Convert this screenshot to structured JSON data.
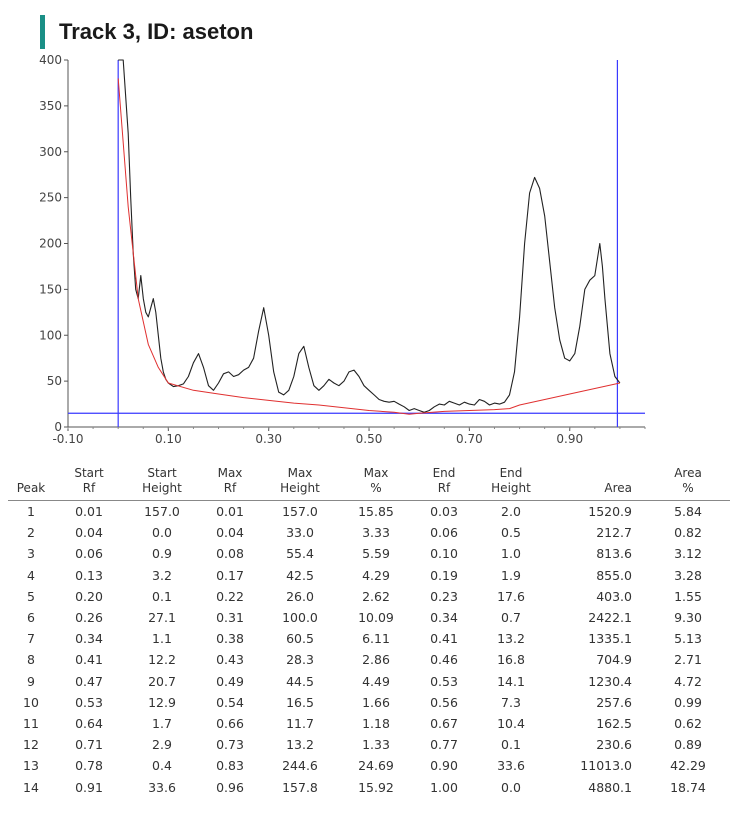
{
  "title": "Track 3, ID: aseton",
  "chart_data": {
    "type": "line",
    "title": "Track 3, ID: aseton",
    "xlim": [
      -0.1,
      1.05
    ],
    "ylim": [
      0,
      400
    ],
    "x_ticks": [
      "-0.10",
      "0.10",
      "0.30",
      "0.50",
      "0.70",
      "0.90"
    ],
    "x_tick_values": [
      -0.1,
      0.1,
      0.3,
      0.5,
      0.7,
      0.9
    ],
    "y_ticks": [
      "0",
      "50",
      "100",
      "150",
      "200",
      "250",
      "300",
      "350",
      "400"
    ],
    "y_tick_values": [
      0,
      50,
      100,
      150,
      200,
      250,
      300,
      350,
      400
    ],
    "start_rf": 0.0,
    "end_rf": 0.995,
    "threshold_y": 15,
    "series": [
      {
        "color": "#222222",
        "x": [
          0.0,
          0.005,
          0.01,
          0.02,
          0.025,
          0.03,
          0.035,
          0.04,
          0.045,
          0.05,
          0.055,
          0.06,
          0.065,
          0.07,
          0.075,
          0.08,
          0.085,
          0.09,
          0.095,
          0.1,
          0.11,
          0.12,
          0.13,
          0.14,
          0.15,
          0.16,
          0.17,
          0.18,
          0.19,
          0.2,
          0.21,
          0.22,
          0.23,
          0.24,
          0.25,
          0.26,
          0.27,
          0.28,
          0.29,
          0.3,
          0.31,
          0.32,
          0.33,
          0.34,
          0.35,
          0.36,
          0.37,
          0.38,
          0.39,
          0.4,
          0.41,
          0.42,
          0.43,
          0.44,
          0.45,
          0.46,
          0.47,
          0.48,
          0.49,
          0.5,
          0.51,
          0.52,
          0.53,
          0.54,
          0.55,
          0.56,
          0.57,
          0.58,
          0.59,
          0.6,
          0.61,
          0.62,
          0.63,
          0.64,
          0.65,
          0.66,
          0.67,
          0.68,
          0.69,
          0.7,
          0.71,
          0.72,
          0.73,
          0.74,
          0.75,
          0.76,
          0.77,
          0.78,
          0.79,
          0.8,
          0.81,
          0.82,
          0.83,
          0.84,
          0.85,
          0.86,
          0.87,
          0.88,
          0.89,
          0.9,
          0.91,
          0.92,
          0.93,
          0.94,
          0.95,
          0.96,
          0.965,
          0.97,
          0.975,
          0.98,
          0.99,
          1.0
        ],
        "y": [
          400,
          400,
          400,
          320,
          250,
          190,
          150,
          140,
          165,
          140,
          125,
          120,
          130,
          140,
          125,
          100,
          75,
          60,
          52,
          48,
          44,
          45,
          47,
          55,
          70,
          80,
          65,
          45,
          40,
          48,
          58,
          60,
          55,
          57,
          62,
          65,
          75,
          105,
          130,
          100,
          60,
          38,
          35,
          40,
          55,
          80,
          88,
          65,
          45,
          40,
          45,
          52,
          48,
          45,
          50,
          60,
          62,
          55,
          45,
          40,
          35,
          30,
          28,
          27,
          28,
          25,
          22,
          18,
          20,
          18,
          16,
          18,
          22,
          25,
          24,
          28,
          26,
          24,
          27,
          25,
          24,
          30,
          28,
          24,
          26,
          25,
          27,
          35,
          60,
          120,
          200,
          255,
          272,
          260,
          230,
          180,
          130,
          95,
          75,
          72,
          80,
          110,
          150,
          160,
          165,
          200,
          175,
          140,
          110,
          80,
          55,
          48
        ]
      },
      {
        "color": "#e03030",
        "x": [
          0.0,
          0.02,
          0.04,
          0.06,
          0.08,
          0.1,
          0.15,
          0.2,
          0.25,
          0.3,
          0.35,
          0.4,
          0.45,
          0.5,
          0.55,
          0.58,
          0.6,
          0.65,
          0.7,
          0.75,
          0.78,
          0.8,
          0.85,
          0.9,
          0.95,
          1.0
        ],
        "y": [
          380,
          240,
          140,
          90,
          65,
          48,
          40,
          36,
          32,
          29,
          26,
          24,
          21,
          18,
          16,
          14,
          15,
          17,
          18,
          19,
          20,
          24,
          30,
          36,
          42,
          48
        ]
      }
    ]
  },
  "table": {
    "headers": [
      [
        "",
        "Peak"
      ],
      [
        "Start",
        "Rf"
      ],
      [
        "Start",
        "Height"
      ],
      [
        "Max",
        "Rf"
      ],
      [
        "Max",
        "Height"
      ],
      [
        "Max",
        "%"
      ],
      [
        "End",
        "Rf"
      ],
      [
        "End",
        "Height"
      ],
      [
        "",
        "Area"
      ],
      [
        "Area",
        "%"
      ]
    ],
    "rows": [
      [
        "1",
        "0.01",
        "157.0",
        "0.01",
        "157.0",
        "15.85",
        "0.03",
        "2.0",
        "1520.9",
        "5.84"
      ],
      [
        "2",
        "0.04",
        "0.0",
        "0.04",
        "33.0",
        "3.33",
        "0.06",
        "0.5",
        "212.7",
        "0.82"
      ],
      [
        "3",
        "0.06",
        "0.9",
        "0.08",
        "55.4",
        "5.59",
        "0.10",
        "1.0",
        "813.6",
        "3.12"
      ],
      [
        "4",
        "0.13",
        "3.2",
        "0.17",
        "42.5",
        "4.29",
        "0.19",
        "1.9",
        "855.0",
        "3.28"
      ],
      [
        "5",
        "0.20",
        "0.1",
        "0.22",
        "26.0",
        "2.62",
        "0.23",
        "17.6",
        "403.0",
        "1.55"
      ],
      [
        "6",
        "0.26",
        "27.1",
        "0.31",
        "100.0",
        "10.09",
        "0.34",
        "0.7",
        "2422.1",
        "9.30"
      ],
      [
        "7",
        "0.34",
        "1.1",
        "0.38",
        "60.5",
        "6.11",
        "0.41",
        "13.2",
        "1335.1",
        "5.13"
      ],
      [
        "8",
        "0.41",
        "12.2",
        "0.43",
        "28.3",
        "2.86",
        "0.46",
        "16.8",
        "704.9",
        "2.71"
      ],
      [
        "9",
        "0.47",
        "20.7",
        "0.49",
        "44.5",
        "4.49",
        "0.53",
        "14.1",
        "1230.4",
        "4.72"
      ],
      [
        "10",
        "0.53",
        "12.9",
        "0.54",
        "16.5",
        "1.66",
        "0.56",
        "7.3",
        "257.6",
        "0.99"
      ],
      [
        "11",
        "0.64",
        "1.7",
        "0.66",
        "11.7",
        "1.18",
        "0.67",
        "10.4",
        "162.5",
        "0.62"
      ],
      [
        "12",
        "0.71",
        "2.9",
        "0.73",
        "13.2",
        "1.33",
        "0.77",
        "0.1",
        "230.6",
        "0.89"
      ],
      [
        "13",
        "0.78",
        "0.4",
        "0.83",
        "244.6",
        "24.69",
        "0.90",
        "33.6",
        "11013.0",
        "42.29"
      ],
      [
        "14",
        "0.91",
        "33.6",
        "0.96",
        "157.8",
        "15.92",
        "1.00",
        "0.0",
        "4880.1",
        "18.74"
      ]
    ]
  }
}
